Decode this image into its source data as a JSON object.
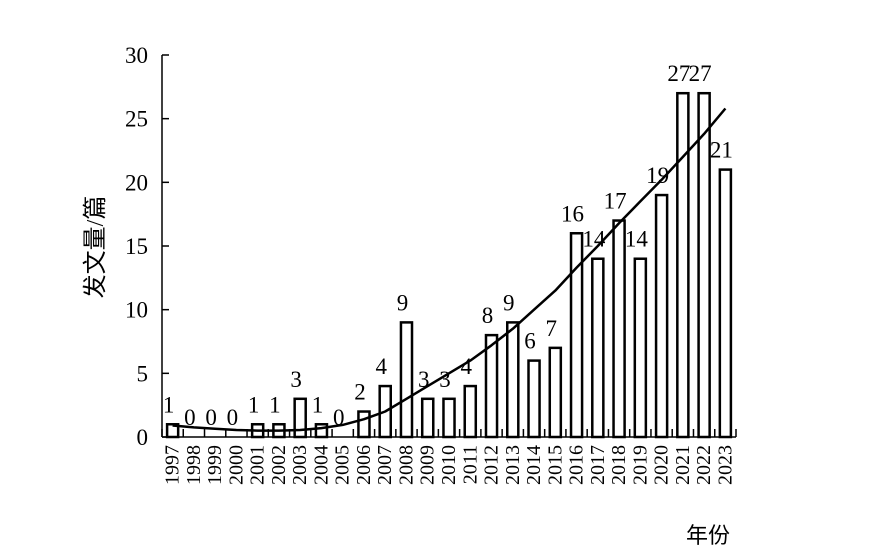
{
  "chart_data": {
    "type": "bar",
    "title": "",
    "xlabel": "年份",
    "ylabel": "发文量/篇",
    "ylim": [
      0,
      30
    ],
    "yticks": [
      0,
      5,
      10,
      15,
      20,
      25,
      30
    ],
    "categories": [
      "1997",
      "1998",
      "1999",
      "2000",
      "2001",
      "2002",
      "2003",
      "2004",
      "2005",
      "2006",
      "2007",
      "2008",
      "2009",
      "2010",
      "2011",
      "2012",
      "2013",
      "2014",
      "2015",
      "2016",
      "2017",
      "2018",
      "2019",
      "2020",
      "2021",
      "2022",
      "2023"
    ],
    "series": [
      {
        "type": "bar",
        "values": [
          1,
          0,
          0,
          0,
          1,
          1,
          3,
          1,
          0,
          2,
          4,
          9,
          3,
          3,
          4,
          8,
          9,
          6,
          7,
          16,
          14,
          17,
          14,
          19,
          27,
          27,
          21
        ]
      },
      {
        "type": "line",
        "values": [
          0.9,
          0.75,
          0.65,
          0.55,
          0.5,
          0.5,
          0.55,
          0.7,
          0.95,
          1.4,
          2.0,
          3.0,
          4.0,
          5.0,
          6.0,
          7.2,
          8.5,
          10.0,
          11.5,
          13.3,
          15.0,
          16.8,
          18.5,
          20.2,
          22.0,
          23.8,
          25.8
        ]
      }
    ],
    "grid": false,
    "legend": "none",
    "colors": {
      "bar_fill": "#ffffff",
      "bar_stroke": "#000000",
      "line": "#000000"
    }
  }
}
